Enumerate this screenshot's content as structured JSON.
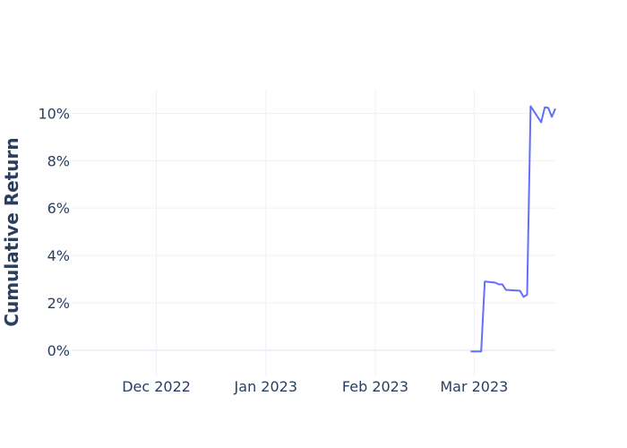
{
  "chart_data": {
    "type": "line",
    "title": "",
    "xlabel": "",
    "ylabel": "Cumulative Return",
    "xlim": [
      "2022-11-07",
      "2023-03-24"
    ],
    "ylim": [
      -0.011,
      0.11
    ],
    "x_ticks": [
      {
        "date": "2022-12-01",
        "label": "Dec 2022"
      },
      {
        "date": "2023-01-01",
        "label": "Jan 2023"
      },
      {
        "date": "2023-02-01",
        "label": "Feb 2023"
      },
      {
        "date": "2023-03-01",
        "label": "Mar 2023"
      }
    ],
    "y_ticks": [
      {
        "value": 0.0,
        "label": "0%"
      },
      {
        "value": 0.02,
        "label": "2%"
      },
      {
        "value": 0.04,
        "label": "4%"
      },
      {
        "value": 0.06,
        "label": "6%"
      },
      {
        "value": 0.08,
        "label": "8%"
      },
      {
        "value": 0.1,
        "label": "10%"
      }
    ],
    "grid": true,
    "series": [
      {
        "name": "",
        "color": "#636efa",
        "x": [
          "2023-02-28",
          "2023-03-03",
          "2023-03-04",
          "2023-03-06",
          "2023-03-07",
          "2023-03-08",
          "2023-03-09",
          "2023-03-10",
          "2023-03-13",
          "2023-03-14",
          "2023-03-15",
          "2023-03-16",
          "2023-03-17",
          "2023-03-20",
          "2023-03-21",
          "2023-03-22",
          "2023-03-23",
          "2023-03-24"
        ],
        "y": [
          -0.0005,
          -0.0005,
          0.029,
          0.0287,
          0.0285,
          0.0278,
          0.0278,
          0.0255,
          0.0252,
          0.0251,
          0.0225,
          0.0235,
          0.103,
          0.0962,
          0.1025,
          0.1023,
          0.0985,
          0.102
        ]
      }
    ]
  }
}
